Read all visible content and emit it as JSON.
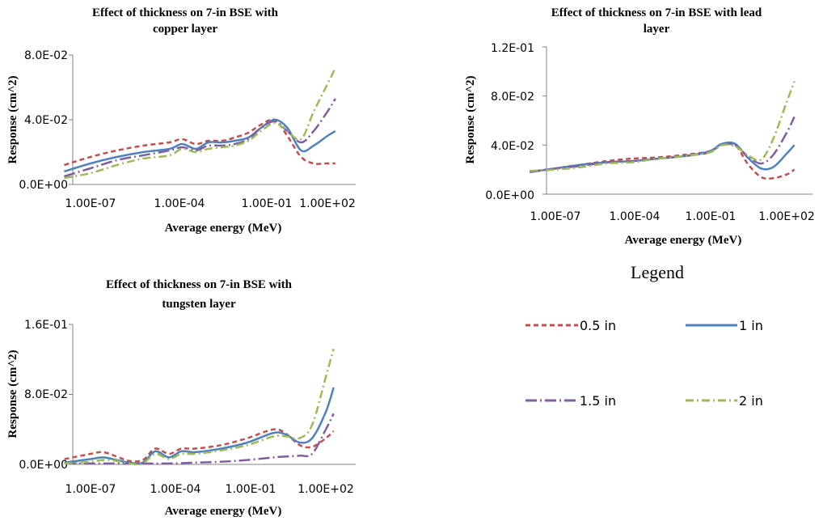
{
  "legend": {
    "title": "Legend",
    "items": [
      {
        "label": "0.5 in",
        "color": "#c0504d",
        "dash": "6,4"
      },
      {
        "label": "1 in",
        "color": "#4f81bd",
        "dash": ""
      },
      {
        "label": "1.5 in",
        "color": "#7f5fa0",
        "dash": "14,4,2,4"
      },
      {
        "label": "2 in",
        "color": "#9bbb59",
        "dash": "10,4,2,4"
      }
    ]
  },
  "chart_data": [
    {
      "type": "line",
      "title": [
        "Effect of thickness on 7-in BSE with",
        "copper layer"
      ],
      "xlabel": "Average energy (MeV)",
      "ylabel": "Response (cm^2)",
      "x_scale": "log",
      "xticks": [
        "1.00E-07",
        "1.00E-04",
        "1.00E-01",
        "1.00E+02"
      ],
      "xlim": [
        1e-08,
        1000.0
      ],
      "yticks": [
        "0.0E+00",
        "4.0E-02",
        "8.0E-02"
      ],
      "ylim": [
        0,
        0.08
      ],
      "series": [
        {
          "name": "0.5 in",
          "x": [
            1e-08,
            1e-07,
            1e-06,
            1e-05,
            0.0001,
            0.0003,
            0.001,
            0.003,
            0.01,
            0.03,
            0.1,
            0.3,
            1.0,
            3.0,
            10,
            30,
            100,
            200
          ],
          "y": [
            0.012,
            0.017,
            0.021,
            0.024,
            0.026,
            0.028,
            0.025,
            0.027,
            0.027,
            0.029,
            0.032,
            0.037,
            0.04,
            0.03,
            0.017,
            0.013,
            0.013,
            0.013
          ]
        },
        {
          "name": "1 in",
          "x": [
            1e-08,
            1e-07,
            1e-06,
            1e-05,
            0.0001,
            0.0003,
            0.001,
            0.003,
            0.01,
            0.03,
            0.1,
            0.3,
            1.0,
            3.0,
            10,
            30,
            100,
            200
          ],
          "y": [
            0.008,
            0.013,
            0.017,
            0.02,
            0.022,
            0.025,
            0.022,
            0.026,
            0.026,
            0.027,
            0.029,
            0.035,
            0.04,
            0.035,
            0.021,
            0.024,
            0.03,
            0.033
          ]
        },
        {
          "name": "1.5 in",
          "x": [
            1e-08,
            1e-07,
            1e-06,
            1e-05,
            0.0001,
            0.0003,
            0.001,
            0.003,
            0.01,
            0.03,
            0.1,
            0.3,
            1.0,
            3.0,
            10,
            30,
            100,
            200
          ],
          "y": [
            0.005,
            0.01,
            0.015,
            0.018,
            0.021,
            0.023,
            0.021,
            0.024,
            0.024,
            0.025,
            0.028,
            0.035,
            0.039,
            0.033,
            0.026,
            0.033,
            0.045,
            0.053
          ]
        },
        {
          "name": "2 in",
          "x": [
            1e-08,
            1e-07,
            1e-06,
            1e-05,
            0.0001,
            0.0003,
            0.001,
            0.003,
            0.01,
            0.03,
            0.1,
            0.3,
            1.0,
            3.0,
            10,
            30,
            100,
            200
          ],
          "y": [
            0.004,
            0.007,
            0.012,
            0.016,
            0.018,
            0.022,
            0.02,
            0.022,
            0.023,
            0.024,
            0.027,
            0.033,
            0.038,
            0.033,
            0.028,
            0.045,
            0.062,
            0.072
          ]
        }
      ]
    },
    {
      "type": "line",
      "title": [
        "Effect of thickness on 7-in BSE with lead",
        "layer"
      ],
      "xlabel": "Average energy (MeV)",
      "ylabel": "Response (cm^2)",
      "x_scale": "log",
      "xticks": [
        "1.00E-07",
        "1.00E-04",
        "1.00E-01",
        "1.00E+02"
      ],
      "xlim": [
        1e-08,
        1000.0
      ],
      "yticks": [
        "0.0E+00",
        "4.0E-02",
        "8.0E-02",
        "1.2E-01"
      ],
      "ylim": [
        0,
        0.12
      ],
      "series": [
        {
          "name": "0.5 in",
          "x": [
            1e-08,
            1e-07,
            1e-06,
            1e-05,
            0.0001,
            0.001,
            0.01,
            0.1,
            0.3,
            1.0,
            3.0,
            10,
            30,
            100,
            200
          ],
          "y": [
            0.018,
            0.021,
            0.024,
            0.027,
            0.029,
            0.03,
            0.032,
            0.035,
            0.04,
            0.04,
            0.025,
            0.014,
            0.013,
            0.016,
            0.02
          ]
        },
        {
          "name": "1 in",
          "x": [
            1e-08,
            1e-07,
            1e-06,
            1e-05,
            0.0001,
            0.001,
            0.01,
            0.1,
            0.3,
            1.0,
            3.0,
            10,
            30,
            100,
            200
          ],
          "y": [
            0.018,
            0.021,
            0.024,
            0.026,
            0.027,
            0.029,
            0.031,
            0.035,
            0.041,
            0.041,
            0.03,
            0.021,
            0.022,
            0.033,
            0.04
          ]
        },
        {
          "name": "1.5 in",
          "x": [
            1e-08,
            1e-07,
            1e-06,
            1e-05,
            0.0001,
            0.001,
            0.01,
            0.1,
            0.3,
            1.0,
            3.0,
            10,
            30,
            100,
            200
          ],
          "y": [
            0.018,
            0.021,
            0.023,
            0.026,
            0.027,
            0.029,
            0.031,
            0.034,
            0.04,
            0.04,
            0.031,
            0.025,
            0.032,
            0.05,
            0.063
          ]
        },
        {
          "name": "2 in",
          "x": [
            1e-08,
            1e-07,
            1e-06,
            1e-05,
            0.0001,
            0.001,
            0.01,
            0.1,
            0.3,
            1.0,
            3.0,
            10,
            30,
            100,
            200
          ],
          "y": [
            0.019,
            0.02,
            0.022,
            0.025,
            0.026,
            0.029,
            0.031,
            0.034,
            0.04,
            0.039,
            0.032,
            0.028,
            0.045,
            0.075,
            0.092
          ]
        }
      ]
    },
    {
      "type": "line",
      "title": [
        "Effect of thickness on 7-in BSE with",
        "tungsten layer"
      ],
      "xlabel": "Average energy (MeV)",
      "ylabel": "Response (cm^2)",
      "x_scale": "log",
      "xticks": [
        "1.00E-07",
        "1.00E-04",
        "1.00E-01",
        "1.00E+02"
      ],
      "xlim": [
        1e-08,
        1000.0
      ],
      "yticks": [
        "0.0E+00",
        "8.0E-02",
        "1.6E-01"
      ],
      "ylim": [
        0,
        0.16
      ],
      "series": [
        {
          "name": "0.5 in",
          "x": [
            1e-08,
            1e-07,
            3e-07,
            1e-06,
            3e-06,
            1e-05,
            3e-05,
            0.0001,
            0.0003,
            0.001,
            0.01,
            0.1,
            1.0,
            3.0,
            10,
            30,
            100,
            200
          ],
          "y": [
            0.006,
            0.012,
            0.014,
            0.009,
            0.004,
            0.005,
            0.018,
            0.012,
            0.018,
            0.018,
            0.022,
            0.03,
            0.04,
            0.035,
            0.022,
            0.02,
            0.03,
            0.038
          ]
        },
        {
          "name": "1 in",
          "x": [
            1e-08,
            1e-07,
            3e-07,
            1e-06,
            3e-06,
            1e-05,
            3e-05,
            0.0001,
            0.0003,
            0.001,
            0.01,
            0.1,
            1.0,
            3.0,
            10,
            30,
            100,
            200
          ],
          "y": [
            0.002,
            0.006,
            0.008,
            0.005,
            0.002,
            0.002,
            0.015,
            0.008,
            0.015,
            0.014,
            0.018,
            0.025,
            0.036,
            0.034,
            0.025,
            0.03,
            0.06,
            0.088
          ]
        },
        {
          "name": "1.5 in",
          "x": [
            1e-08,
            1e-07,
            1e-06,
            1e-05,
            0.0001,
            0.001,
            0.01,
            0.1,
            1.0,
            3.0,
            10,
            30,
            100,
            200
          ],
          "y": [
            0.001,
            0.001,
            0.001,
            0.001,
            0.001,
            0.002,
            0.003,
            0.005,
            0.008,
            0.009,
            0.01,
            0.012,
            0.04,
            0.058
          ]
        },
        {
          "name": "2 in",
          "x": [
            1e-08,
            1e-07,
            3e-07,
            1e-06,
            3e-06,
            1e-05,
            3e-05,
            0.0001,
            0.0003,
            0.001,
            0.01,
            0.1,
            1.0,
            3.0,
            10,
            30,
            100,
            200
          ],
          "y": [
            0.001,
            0.003,
            0.005,
            0.004,
            0.001,
            0.001,
            0.012,
            0.006,
            0.012,
            0.012,
            0.016,
            0.022,
            0.032,
            0.032,
            0.03,
            0.045,
            0.1,
            0.132
          ]
        }
      ]
    }
  ]
}
